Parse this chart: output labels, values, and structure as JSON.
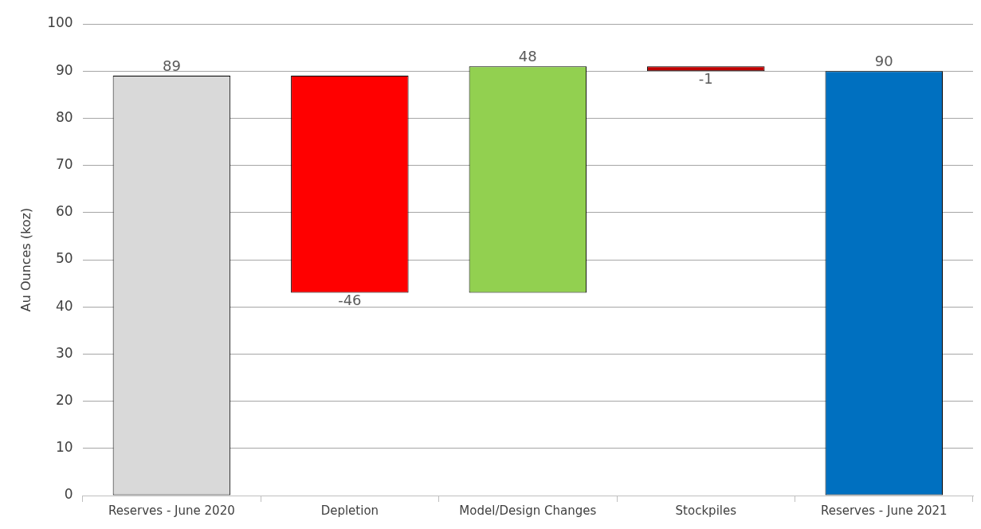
{
  "chart_data": {
    "type": "bar",
    "ylabel": "Au Ounces (koz)",
    "categories": [
      "Reserves - June 2020",
      "Depletion",
      "Model/Design Changes",
      "Stockpiles",
      "Reserves - June 2021"
    ],
    "values": [
      89,
      -46,
      48,
      -1,
      90
    ],
    "base": [
      0,
      89,
      43,
      91,
      0
    ],
    "colors": [
      "#d9d9d9",
      "#ff0000",
      "#92d050",
      "#c00000",
      "#0070c0"
    ],
    "ylim": [
      0,
      100
    ],
    "yticks": [
      0,
      10,
      20,
      30,
      40,
      50,
      60,
      70,
      80,
      90,
      100
    ],
    "grid": "y",
    "legend": false,
    "data_labels": true
  }
}
